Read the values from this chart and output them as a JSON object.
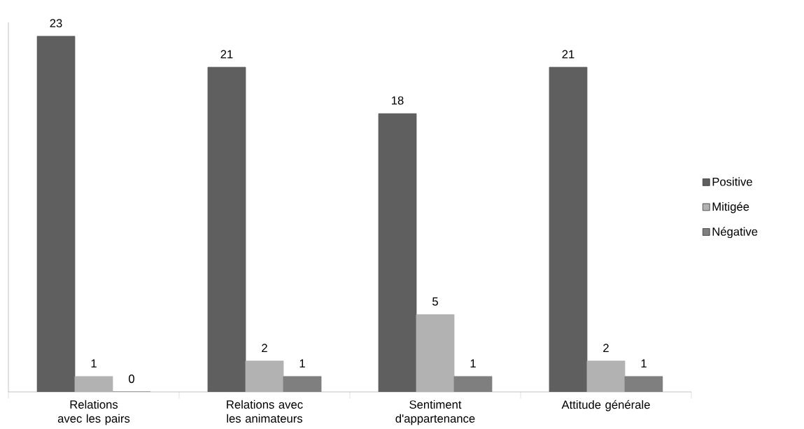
{
  "chart_data": {
    "type": "bar",
    "categories": [
      "Relations avec les pairs",
      "Relations avec les animateurs",
      "Sentiment d'appartenance",
      "Attitude générale"
    ],
    "series": [
      {
        "name": "Positive",
        "color": "#5f5f5f",
        "values": [
          23,
          21,
          18,
          21
        ]
      },
      {
        "name": "Mitigée",
        "color": "#b2b2b2",
        "values": [
          1,
          2,
          5,
          2
        ]
      },
      {
        "name": "Négative",
        "color": "#7f7f7f",
        "values": [
          0,
          1,
          1,
          1
        ]
      }
    ],
    "ylim": [
      0,
      23.9
    ],
    "data_labels": true,
    "legend": "right"
  }
}
